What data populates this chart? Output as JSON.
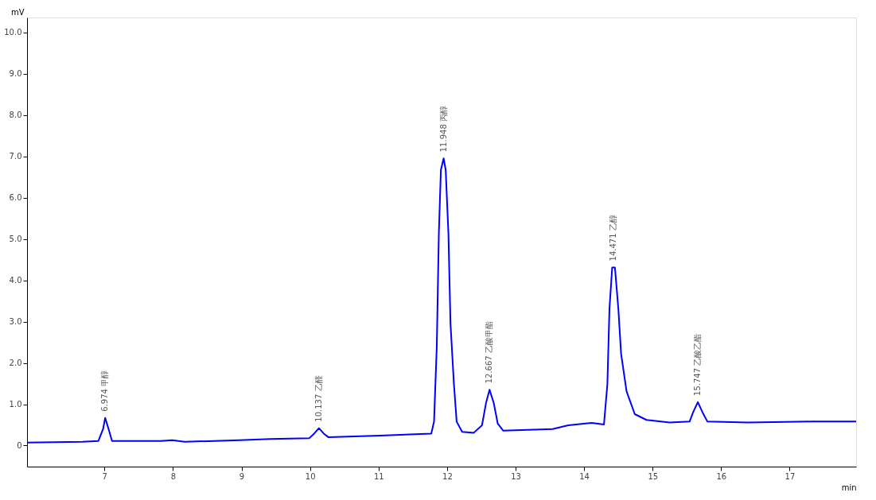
{
  "chart_data": {
    "type": "line",
    "xlabel": "min",
    "ylabel": "mV",
    "x": [
      5.88,
      6.68,
      6.91,
      6.98,
      7.01,
      7.06,
      7.11,
      7.82,
      7.99,
      8.17,
      8.97,
      9.42,
      9.99,
      10.06,
      10.13,
      10.2,
      10.27,
      11.02,
      11.77,
      11.81,
      11.85,
      11.88,
      11.91,
      11.95,
      11.98,
      12.02,
      12.05,
      12.1,
      12.14,
      12.22,
      12.39,
      12.51,
      12.57,
      12.62,
      12.68,
      12.74,
      12.82,
      13.54,
      13.77,
      14.11,
      14.29,
      14.34,
      14.37,
      14.41,
      14.45,
      14.5,
      14.54,
      14.62,
      14.74,
      14.91,
      15.25,
      15.54,
      15.59,
      15.66,
      15.73,
      15.8,
      16.39,
      17.31,
      17.97
    ],
    "series": [
      {
        "color": "#0000ff",
        "values": [
          0.07,
          0.09,
          0.11,
          0.4,
          0.67,
          0.4,
          0.11,
          0.11,
          0.13,
          0.09,
          0.13,
          0.16,
          0.18,
          0.29,
          0.42,
          0.29,
          0.2,
          0.24,
          0.29,
          0.58,
          2.4,
          5.13,
          6.67,
          6.95,
          6.67,
          5.13,
          2.95,
          1.49,
          0.58,
          0.33,
          0.31,
          0.49,
          1.04,
          1.35,
          1.04,
          0.53,
          0.36,
          0.4,
          0.49,
          0.55,
          0.51,
          1.49,
          3.31,
          4.31,
          4.31,
          3.31,
          2.22,
          1.31,
          0.76,
          0.62,
          0.56,
          0.58,
          0.8,
          1.05,
          0.8,
          0.58,
          0.56,
          0.58,
          0.58
        ]
      }
    ],
    "xlim": [
      5.87,
      17.97
    ],
    "xticks": [
      7,
      8,
      9,
      10,
      11,
      12,
      13,
      14,
      15,
      16,
      17
    ],
    "ylim": [
      -0.51,
      10.36
    ],
    "yticks": [
      0,
      {
        "value": 1,
        "label": "1.0"
      },
      {
        "value": 2,
        "label": "2.0"
      },
      {
        "value": 3,
        "label": "3.0"
      },
      {
        "value": 4,
        "label": "4.0"
      },
      {
        "value": 5,
        "label": "5.0"
      },
      {
        "value": 6,
        "label": "6.0"
      },
      {
        "value": 7,
        "label": "7.0"
      },
      {
        "value": 8,
        "label": "8.0"
      },
      {
        "value": 9,
        "label": "9.0"
      },
      {
        "value": 10,
        "label": "10.0"
      }
    ],
    "annotations": [
      {
        "text": "6.974 甲醇",
        "x": 7.01,
        "y": 0.67
      },
      {
        "text": "10.137 乙醛",
        "x": 10.13,
        "y": 0.42
      },
      {
        "text": "11.948 丙醇",
        "x": 11.95,
        "y": 6.95
      },
      {
        "text": "12.667 乙酸甲酯",
        "x": 12.62,
        "y": 1.35
      },
      {
        "text": "14.471 乙醇",
        "x": 14.43,
        "y": 4.31
      },
      {
        "text": "15.747 乙酸乙酯",
        "x": 15.66,
        "y": 1.05
      }
    ],
    "grid": false,
    "line_style": "solid",
    "marker": "none"
  }
}
